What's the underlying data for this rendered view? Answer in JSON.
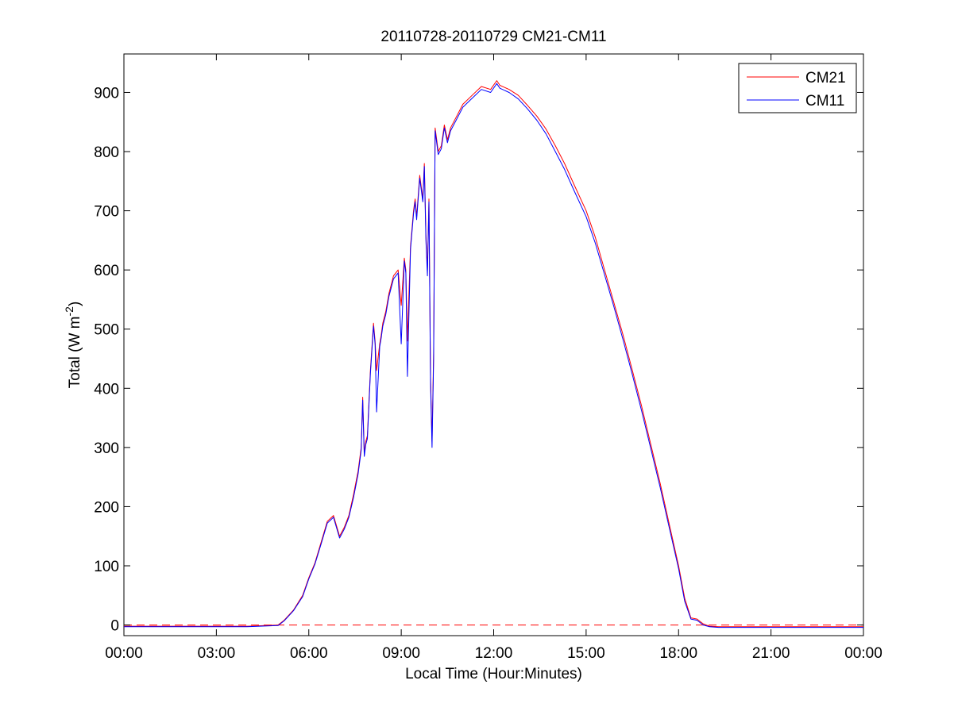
{
  "chart_data": {
    "type": "line",
    "title": "20110728-20110729 CM21-CM11",
    "xlabel": "Local Time (Hour:Minutes)",
    "ylabel": {
      "main": "Total (W m",
      "superscript": "-2",
      "close": ")"
    },
    "x_unit": "hours of local time",
    "xlim": [
      0,
      24
    ],
    "ylim": [
      -18,
      965
    ],
    "x_ticks": [
      0,
      3,
      6,
      9,
      12,
      15,
      18,
      21,
      24
    ],
    "x_tick_labels": [
      "00:00",
      "03:00",
      "06:00",
      "09:00",
      "12:00",
      "15:00",
      "18:00",
      "21:00",
      "00:00"
    ],
    "y_ticks": [
      0,
      100,
      200,
      300,
      400,
      500,
      600,
      700,
      800,
      900
    ],
    "y_tick_labels": [
      "0",
      "100",
      "200",
      "300",
      "400",
      "500",
      "600",
      "700",
      "800",
      "900"
    ],
    "grid": false,
    "legend_position": "top-right",
    "reference_line": {
      "y": 0,
      "color": "#ff0000",
      "style": "dashed"
    },
    "series": [
      {
        "name": "CM21",
        "color": "#ff0000",
        "x": [
          0,
          1,
          2,
          3,
          4,
          5,
          5.2,
          5.5,
          5.8,
          6,
          6.2,
          6.4,
          6.6,
          6.8,
          7.0,
          7.15,
          7.3,
          7.45,
          7.6,
          7.7,
          7.75,
          7.8,
          7.85,
          7.9,
          8.0,
          8.1,
          8.15,
          8.2,
          8.3,
          8.35,
          8.4,
          8.5,
          8.6,
          8.75,
          8.9,
          9.0,
          9.1,
          9.15,
          9.2,
          9.3,
          9.4,
          9.45,
          9.5,
          9.6,
          9.7,
          9.75,
          9.8,
          9.85,
          9.9,
          9.95,
          10.0,
          10.05,
          10.1,
          10.2,
          10.3,
          10.4,
          10.5,
          10.6,
          10.8,
          11.0,
          11.3,
          11.6,
          11.9,
          12.1,
          12.2,
          12.5,
          12.8,
          13.1,
          13.4,
          13.7,
          14.0,
          14.3,
          14.6,
          15.0,
          15.3,
          15.6,
          15.9,
          16.2,
          16.5,
          16.8,
          17.1,
          17.4,
          17.7,
          18.0,
          18.2,
          18.4,
          18.6,
          18.8,
          19.0,
          19.3,
          20,
          21,
          22,
          23,
          24
        ],
        "y": [
          -2,
          -2,
          -2,
          -2,
          -2,
          0,
          8,
          25,
          50,
          80,
          105,
          140,
          175,
          185,
          150,
          165,
          185,
          220,
          260,
          300,
          385,
          290,
          310,
          320,
          430,
          510,
          480,
          430,
          475,
          490,
          510,
          530,
          560,
          590,
          600,
          540,
          620,
          600,
          480,
          640,
          700,
          720,
          690,
          760,
          720,
          780,
          660,
          600,
          720,
          420,
          310,
          460,
          840,
          800,
          810,
          845,
          820,
          840,
          860,
          880,
          895,
          910,
          905,
          920,
          912,
          905,
          895,
          878,
          860,
          838,
          810,
          780,
          745,
          700,
          655,
          600,
          545,
          490,
          430,
          370,
          305,
          240,
          170,
          100,
          45,
          12,
          10,
          2,
          -2,
          -3,
          -3,
          -3,
          -3,
          -3,
          -3
        ]
      },
      {
        "name": "CM11",
        "color": "#0000ff",
        "x": [
          0,
          1,
          2,
          3,
          4,
          5,
          5.2,
          5.5,
          5.8,
          6,
          6.2,
          6.4,
          6.6,
          6.8,
          7.0,
          7.15,
          7.3,
          7.45,
          7.6,
          7.7,
          7.75,
          7.8,
          7.85,
          7.9,
          8.0,
          8.1,
          8.15,
          8.2,
          8.3,
          8.35,
          8.4,
          8.5,
          8.6,
          8.75,
          8.9,
          9.0,
          9.1,
          9.15,
          9.2,
          9.3,
          9.4,
          9.45,
          9.5,
          9.6,
          9.7,
          9.75,
          9.8,
          9.85,
          9.9,
          9.95,
          10.0,
          10.05,
          10.1,
          10.2,
          10.3,
          10.4,
          10.5,
          10.6,
          10.8,
          11.0,
          11.3,
          11.6,
          11.9,
          12.1,
          12.2,
          12.5,
          12.8,
          13.1,
          13.4,
          13.7,
          14.0,
          14.3,
          14.6,
          15.0,
          15.3,
          15.6,
          15.9,
          16.2,
          16.5,
          16.8,
          17.1,
          17.4,
          17.7,
          18.0,
          18.2,
          18.4,
          18.6,
          18.8,
          19.0,
          19.3,
          20,
          21,
          22,
          23,
          24
        ],
        "y": [
          -3,
          -3,
          -3,
          -3,
          -3,
          -1,
          7,
          24,
          48,
          78,
          103,
          137,
          172,
          182,
          147,
          162,
          182,
          215,
          255,
          295,
          380,
          285,
          305,
          315,
          425,
          505,
          475,
          360,
          470,
          485,
          505,
          525,
          555,
          585,
          595,
          475,
          615,
          595,
          420,
          635,
          695,
          715,
          685,
          755,
          715,
          775,
          650,
          590,
          715,
          410,
          300,
          450,
          835,
          795,
          805,
          840,
          815,
          835,
          855,
          875,
          890,
          905,
          900,
          915,
          907,
          900,
          889,
          872,
          853,
          830,
          800,
          770,
          735,
          690,
          645,
          592,
          538,
          482,
          423,
          362,
          298,
          233,
          164,
          95,
          40,
          10,
          8,
          0,
          -3,
          -4,
          -4,
          -4,
          -4,
          -4,
          -4
        ]
      }
    ]
  }
}
